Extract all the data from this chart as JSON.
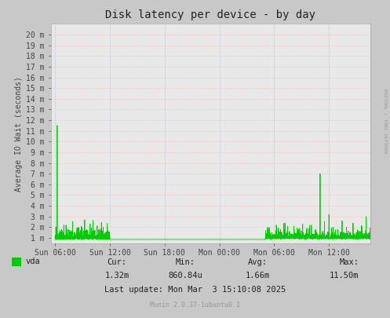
{
  "title": "Disk latency per device - by day",
  "ylabel": "Average IO Wait (seconds)",
  "bg_color": "#c8c8c8",
  "plot_bg_color": "#e8e8e8",
  "grid_color_h": "#ffaaaa",
  "grid_color_v": "#aaaacc",
  "line_color": "#00cc00",
  "ytick_labels": [
    "1 m",
    "2 m",
    "3 m",
    "4 m",
    "5 m",
    "6 m",
    "7 m",
    "8 m",
    "9 m",
    "10 m",
    "11 m",
    "12 m",
    "13 m",
    "14 m",
    "15 m",
    "16 m",
    "17 m",
    "18 m",
    "19 m",
    "20 m"
  ],
  "ytick_values": [
    1,
    2,
    3,
    4,
    5,
    6,
    7,
    8,
    9,
    10,
    11,
    12,
    13,
    14,
    15,
    16,
    17,
    18,
    19,
    20
  ],
  "xtick_labels": [
    "Sun 06:00",
    "Sun 12:00",
    "Sun 18:00",
    "Mon 00:00",
    "Mon 06:00",
    "Mon 12:00"
  ],
  "xtick_positions": [
    0.0,
    0.25,
    0.5,
    0.75,
    1.0,
    1.25
  ],
  "xmin": -0.02,
  "xmax": 1.44,
  "ymin": 0.5,
  "ymax": 21.0,
  "legend_label": "vda",
  "legend_color": "#00cc00",
  "cur_label": "Cur:",
  "cur_val": "1.32m",
  "min_label": "Min:",
  "min_val": "860.84u",
  "avg_label": "Avg:",
  "avg_val": "1.66m",
  "max_label": "Max:",
  "max_val": "11.50m",
  "last_update": "Last update: Mon Mar  3 15:10:08 2025",
  "munin_label": "Munin 2.0.37-1ubuntu0.1",
  "rrdtool_label": "RRDTOOL / TOBI OETIKER",
  "title_fontsize": 10,
  "axis_fontsize": 7,
  "tick_fontsize": 7,
  "stats_fontsize": 7.5,
  "munin_fontsize": 6
}
